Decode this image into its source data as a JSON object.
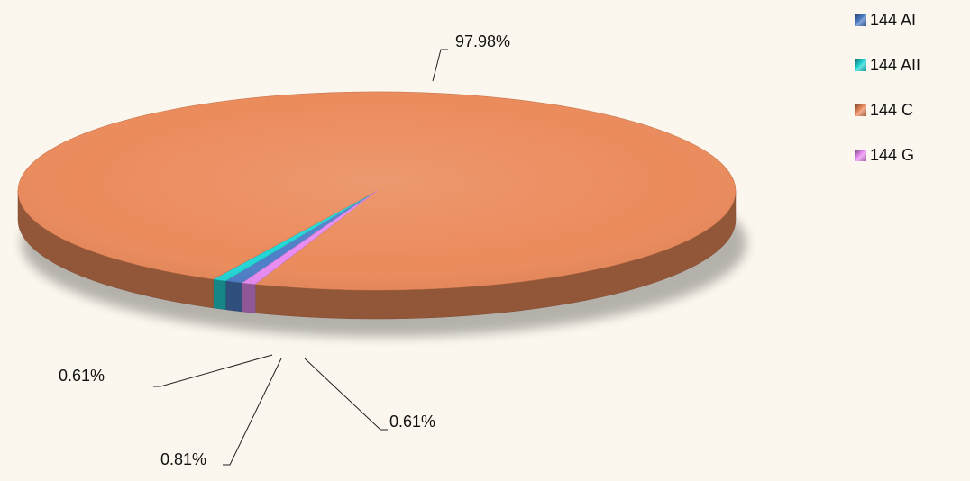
{
  "chart_data": {
    "type": "pie",
    "style": "3d",
    "categories": [
      "144 AI",
      "144 AII",
      "144 C",
      "144 G"
    ],
    "values": [
      0.81,
      0.61,
      97.98,
      0.61
    ],
    "labels": [
      "0.81%",
      "0.61%",
      "97.98%",
      "0.61%"
    ],
    "colors": [
      "#4f7fc9",
      "#23d6d6",
      "#eb8b5c",
      "#e98cf2"
    ],
    "legend_position": "top-right"
  }
}
